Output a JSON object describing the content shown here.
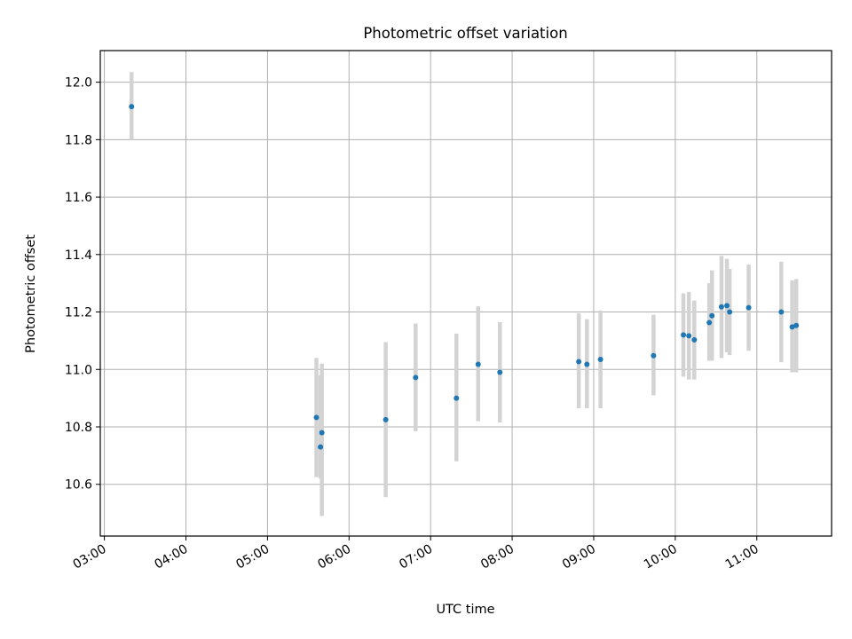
{
  "chart_data": {
    "type": "scatter",
    "title": "Photometric offset variation",
    "xlabel": "UTC time",
    "ylabel": "Photometric offset",
    "xlim": [
      "02:57",
      "11:55"
    ],
    "ylim": [
      10.42,
      12.11
    ],
    "x_ticks": [
      "03:00",
      "04:00",
      "05:00",
      "06:00",
      "07:00",
      "08:00",
      "09:00",
      "10:00",
      "11:00"
    ],
    "y_ticks": [
      10.6,
      10.8,
      11.0,
      11.2,
      11.4,
      11.6,
      11.8,
      12.0
    ],
    "y_tick_labels": [
      "10.6",
      "10.8",
      "11.0",
      "11.2",
      "11.4",
      "11.6",
      "11.8",
      "12.0"
    ],
    "grid": true,
    "point_color": "#1f77b4",
    "errorbar_color": "#d3d3d3",
    "points": [
      {
        "time": "03:20",
        "y": 11.915,
        "lo": 11.8,
        "hi": 12.035
      },
      {
        "time": "05:36",
        "y": 10.833,
        "lo": 10.625,
        "hi": 11.04
      },
      {
        "time": "05:39",
        "y": 10.73,
        "lo": 10.62,
        "hi": 10.98
      },
      {
        "time": "05:40",
        "y": 10.78,
        "lo": 10.49,
        "hi": 11.02
      },
      {
        "time": "06:27",
        "y": 10.825,
        "lo": 10.555,
        "hi": 11.095
      },
      {
        "time": "06:49",
        "y": 10.972,
        "lo": 10.785,
        "hi": 11.16
      },
      {
        "time": "07:19",
        "y": 10.9,
        "lo": 10.68,
        "hi": 11.125
      },
      {
        "time": "07:35",
        "y": 11.018,
        "lo": 10.82,
        "hi": 11.22
      },
      {
        "time": "07:51",
        "y": 10.99,
        "lo": 10.815,
        "hi": 11.165
      },
      {
        "time": "08:49",
        "y": 11.027,
        "lo": 10.865,
        "hi": 11.195
      },
      {
        "time": "08:55",
        "y": 11.018,
        "lo": 10.865,
        "hi": 11.175
      },
      {
        "time": "09:05",
        "y": 11.035,
        "lo": 10.865,
        "hi": 11.205
      },
      {
        "time": "09:44",
        "y": 11.048,
        "lo": 10.91,
        "hi": 11.19
      },
      {
        "time": "10:06",
        "y": 11.12,
        "lo": 10.975,
        "hi": 11.265
      },
      {
        "time": "10:10",
        "y": 11.117,
        "lo": 10.965,
        "hi": 11.27
      },
      {
        "time": "10:14",
        "y": 11.103,
        "lo": 10.965,
        "hi": 11.24
      },
      {
        "time": "10:25",
        "y": 11.163,
        "lo": 11.03,
        "hi": 11.3
      },
      {
        "time": "10:27",
        "y": 11.187,
        "lo": 11.03,
        "hi": 11.345
      },
      {
        "time": "10:34",
        "y": 11.218,
        "lo": 11.04,
        "hi": 11.395
      },
      {
        "time": "10:38",
        "y": 11.222,
        "lo": 11.06,
        "hi": 11.385
      },
      {
        "time": "10:40",
        "y": 11.2,
        "lo": 11.05,
        "hi": 11.35
      },
      {
        "time": "10:54",
        "y": 11.215,
        "lo": 11.065,
        "hi": 11.365
      },
      {
        "time": "11:18",
        "y": 11.2,
        "lo": 11.025,
        "hi": 11.375
      },
      {
        "time": "11:26",
        "y": 11.148,
        "lo": 10.99,
        "hi": 11.31
      },
      {
        "time": "11:29",
        "y": 11.153,
        "lo": 10.99,
        "hi": 11.315
      }
    ]
  }
}
